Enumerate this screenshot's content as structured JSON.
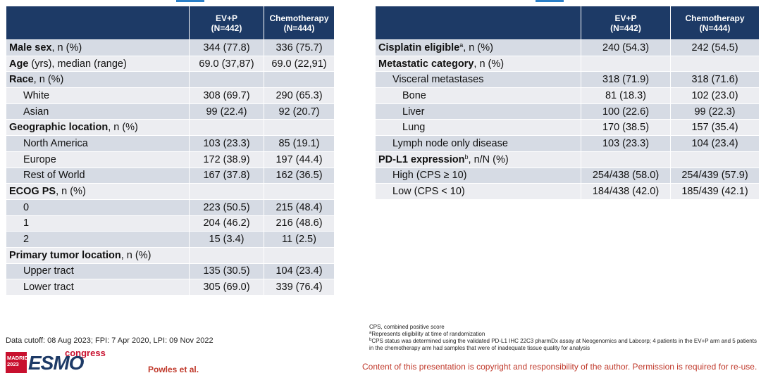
{
  "left_table": {
    "headers": [
      "",
      "EV+P\n(N=442)",
      "Chemotherapy\n(N=444)"
    ],
    "rows": [
      {
        "label_bold": "Male sex",
        "label_rest": ", n (%)",
        "sup": "",
        "indent": 0,
        "v1": "344 (77.8)",
        "v2": "336 (75.7)"
      },
      {
        "label_bold": "Age",
        "label_rest": " (yrs), median (range)",
        "sup": "",
        "indent": 0,
        "v1": "69.0 (37,87)",
        "v2": "69.0 (22,91)"
      },
      {
        "label_bold": "Race",
        "label_rest": ", n (%)",
        "sup": "",
        "indent": 0,
        "v1": "",
        "v2": ""
      },
      {
        "label_bold": "",
        "label_rest": "White",
        "sup": "",
        "indent": 1,
        "v1": "308 (69.7)",
        "v2": "290 (65.3)"
      },
      {
        "label_bold": "",
        "label_rest": "Asian",
        "sup": "",
        "indent": 1,
        "v1": "99 (22.4)",
        "v2": "92 (20.7)"
      },
      {
        "label_bold": "Geographic location",
        "label_rest": ", n (%)",
        "sup": "",
        "indent": 0,
        "v1": "",
        "v2": ""
      },
      {
        "label_bold": "",
        "label_rest": "North America",
        "sup": "",
        "indent": 1,
        "v1": "103 (23.3)",
        "v2": "85 (19.1)"
      },
      {
        "label_bold": "",
        "label_rest": "Europe",
        "sup": "",
        "indent": 1,
        "v1": "172 (38.9)",
        "v2": "197 (44.4)"
      },
      {
        "label_bold": "",
        "label_rest": "Rest of World",
        "sup": "",
        "indent": 1,
        "v1": "167 (37.8)",
        "v2": "162 (36.5)"
      },
      {
        "label_bold": "ECOG PS",
        "label_rest": ", n (%)",
        "sup": "",
        "indent": 0,
        "v1": "",
        "v2": ""
      },
      {
        "label_bold": "",
        "label_rest": "0",
        "sup": "",
        "indent": 1,
        "v1": "223 (50.5)",
        "v2": "215 (48.4)"
      },
      {
        "label_bold": "",
        "label_rest": "1",
        "sup": "",
        "indent": 1,
        "v1": "204 (46.2)",
        "v2": "216 (48.6)"
      },
      {
        "label_bold": "",
        "label_rest": "2",
        "sup": "",
        "indent": 1,
        "v1": "15 (3.4)",
        "v2": "11 (2.5)"
      },
      {
        "label_bold": "Primary tumor location",
        "label_rest": ", n (%)",
        "sup": "",
        "indent": 0,
        "v1": "",
        "v2": ""
      },
      {
        "label_bold": "",
        "label_rest": "Upper tract",
        "sup": "",
        "indent": 1,
        "v1": "135 (30.5)",
        "v2": "104 (23.4)"
      },
      {
        "label_bold": "",
        "label_rest": "Lower tract",
        "sup": "",
        "indent": 1,
        "v1": "305 (69.0)",
        "v2": "339 (76.4)"
      }
    ]
  },
  "right_table": {
    "headers": [
      "",
      "EV+P\n(N=442)",
      "Chemotherapy\n(N=444)"
    ],
    "rows": [
      {
        "label_bold": "Cisplatin eligible",
        "label_rest": ", n (%)",
        "sup": "a",
        "indent": 0,
        "v1": "240 (54.3)",
        "v2": "242 (54.5)"
      },
      {
        "label_bold": "Metastatic category",
        "label_rest": ", n (%)",
        "sup": "",
        "indent": 0,
        "v1": "",
        "v2": ""
      },
      {
        "label_bold": "",
        "label_rest": "Visceral metastases",
        "sup": "",
        "indent": 1,
        "v1": "318 (71.9)",
        "v2": "318 (71.6)"
      },
      {
        "label_bold": "",
        "label_rest": "Bone",
        "sup": "",
        "indent": 2,
        "v1": "81 (18.3)",
        "v2": "102 (23.0)"
      },
      {
        "label_bold": "",
        "label_rest": "Liver",
        "sup": "",
        "indent": 2,
        "v1": "100 (22.6)",
        "v2": "99 (22.3)"
      },
      {
        "label_bold": "",
        "label_rest": "Lung",
        "sup": "",
        "indent": 2,
        "v1": "170 (38.5)",
        "v2": "157 (35.4)"
      },
      {
        "label_bold": "",
        "label_rest": "Lymph node only disease",
        "sup": "",
        "indent": 1,
        "v1": "103 (23.3)",
        "v2": "104 (23.4)"
      },
      {
        "label_bold": "PD-L1 expression",
        "label_rest": ", n/N (%)",
        "sup": "b",
        "indent": 0,
        "v1": "",
        "v2": ""
      },
      {
        "label_bold": "",
        "label_rest": "High (CPS ≥ 10)",
        "sup": "",
        "indent": 1,
        "v1": "254/438 (58.0)",
        "v2": "254/439 (57.9)"
      },
      {
        "label_bold": "",
        "label_rest": "Low (CPS < 10)",
        "sup": "",
        "indent": 1,
        "v1": "184/438 (42.0)",
        "v2": "185/439 (42.1)"
      }
    ]
  },
  "footer": {
    "data_cutoff": "Data cutoff: 08 Aug 2023; FPI: 7 Apr 2020, LPI: 09 Nov 2022",
    "notes": [
      {
        "sup": "",
        "text": "CPS, combined positive score"
      },
      {
        "sup": "a",
        "text": "Represents eligibility at time of randomization"
      },
      {
        "sup": "b",
        "text": "CPS status was determined using the validated PD-L1 IHC 22C3 pharmDx assay at Neogenomics and Labcorp; 4 patients in the EV+P arm and 5 patients in the chemotherapy arm had samples that were of inadequate tissue quality for analysis"
      }
    ],
    "copyright": "Content of this presentation is copyright and responsibility of the author. Permission is required for re-use.",
    "author": "Powles et al.",
    "logo": {
      "city": "MADRID",
      "year": "2023",
      "brand": "ESMO",
      "word": "congress"
    }
  },
  "colors": {
    "header_bg": "#1d3a66",
    "row_odd": "#d6dbe4",
    "row_even": "#ecedf1",
    "accent_red": "#c0392b"
  }
}
